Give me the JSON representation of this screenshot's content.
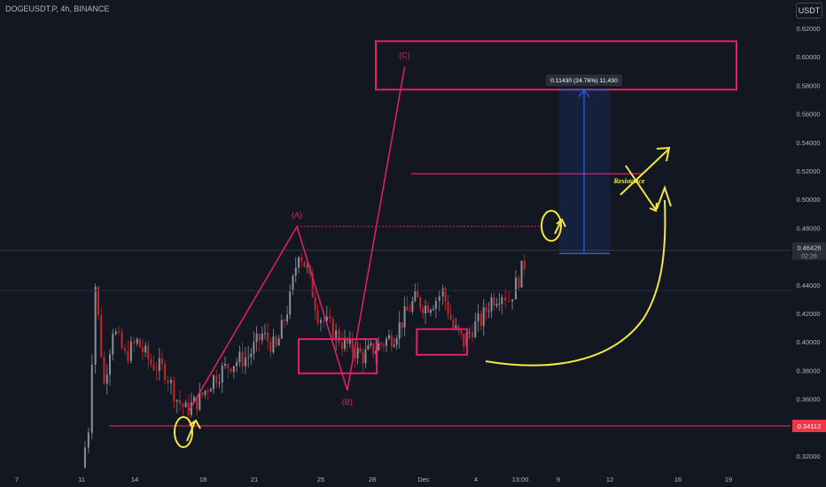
{
  "header": {
    "symbol_line": "DOGEUSDT.P, 4h, BINANCE"
  },
  "currency_button": "USDT",
  "colors": {
    "background": "#131722",
    "candle_up": "#8a8f98",
    "candle_down": "#c2272d",
    "pattern": "#e91e63",
    "support": "#f23645",
    "annotation": "#f5e642",
    "measure": "#2962ff",
    "grid_text": "#b2b5be"
  },
  "chart_data": {
    "type": "candlestick",
    "symbol": "DOGEUSDT.P",
    "interval": "4h",
    "exchange": "BINANCE",
    "ylim": [
      0.31,
      0.625
    ],
    "y_ticks": [
      "0.62000",
      "0.60000",
      "0.58000",
      "0.56000",
      "0.54000",
      "0.52000",
      "0.50000",
      "0.48000",
      "0.46000",
      "0.44000",
      "0.42000",
      "0.40000",
      "0.38000",
      "0.36000",
      "0.32000"
    ],
    "x_ticks": [
      "7",
      "11",
      "14",
      "18",
      "21",
      "25",
      "28",
      "Dec",
      "4",
      "13:00",
      "9",
      "12",
      "16",
      "19"
    ],
    "last_price_label": "0.46426",
    "countdown_label": "02:26",
    "support_level_label": "0.34112",
    "support_level": 0.34112,
    "price_path": [
      [
        11,
        0.312
      ],
      [
        11.4,
        0.34
      ],
      [
        11.8,
        0.44
      ],
      [
        12.3,
        0.37
      ],
      [
        12.8,
        0.41
      ],
      [
        13.5,
        0.39
      ],
      [
        14.2,
        0.4
      ],
      [
        15.0,
        0.385
      ],
      [
        15.8,
        0.38
      ],
      [
        16.5,
        0.36
      ],
      [
        17.0,
        0.352
      ],
      [
        17.8,
        0.36
      ],
      [
        18.6,
        0.375
      ],
      [
        19.6,
        0.385
      ],
      [
        20.6,
        0.39
      ],
      [
        21.4,
        0.405
      ],
      [
        22.2,
        0.395
      ],
      [
        23.0,
        0.43
      ],
      [
        23.5,
        0.465
      ],
      [
        24.0,
        0.45
      ],
      [
        24.6,
        0.42
      ],
      [
        25.3,
        0.41
      ],
      [
        26.0,
        0.4
      ],
      [
        26.6,
        0.395
      ],
      [
        27.2,
        0.39
      ],
      [
        27.8,
        0.395
      ],
      [
        28.4,
        0.4
      ],
      [
        29.0,
        0.405
      ],
      [
        29.6,
        0.418
      ],
      [
        30.2,
        0.43
      ],
      [
        30.8,
        0.425
      ],
      [
        31.4,
        0.43
      ],
      [
        31.8,
        0.435
      ],
      [
        32.4,
        0.41
      ],
      [
        33.0,
        0.4
      ],
      [
        33.5,
        0.41
      ],
      [
        34.0,
        0.415
      ],
      [
        34.6,
        0.43
      ],
      [
        35.2,
        0.435
      ],
      [
        35.6,
        0.43
      ],
      [
        36.0,
        0.44
      ],
      [
        36.5,
        0.455
      ]
    ],
    "annotations": {
      "wave_labels": [
        "(A)",
        "(B)",
        "(C)"
      ],
      "abc_points": [
        [
          17.2,
          0.352
        ],
        [
          23.4,
          0.481
        ],
        [
          26.3,
          0.366
        ],
        [
          29.6,
          0.593
        ]
      ],
      "resistance_label": "Resistance",
      "resistance_level": 0.518,
      "dotted_level": 0.481,
      "target_zone": [
        0.577,
        0.611
      ],
      "demand_zones": [
        {
          "x": [
            23.5,
            28.0
          ],
          "y": [
            0.378,
            0.402
          ]
        },
        {
          "x": [
            30.3,
            33.2
          ],
          "y": [
            0.391,
            0.409
          ]
        }
      ],
      "measure_label": "0.11430 (24.76%) 11,430",
      "measure_range": [
        0.462,
        0.577
      ]
    }
  }
}
